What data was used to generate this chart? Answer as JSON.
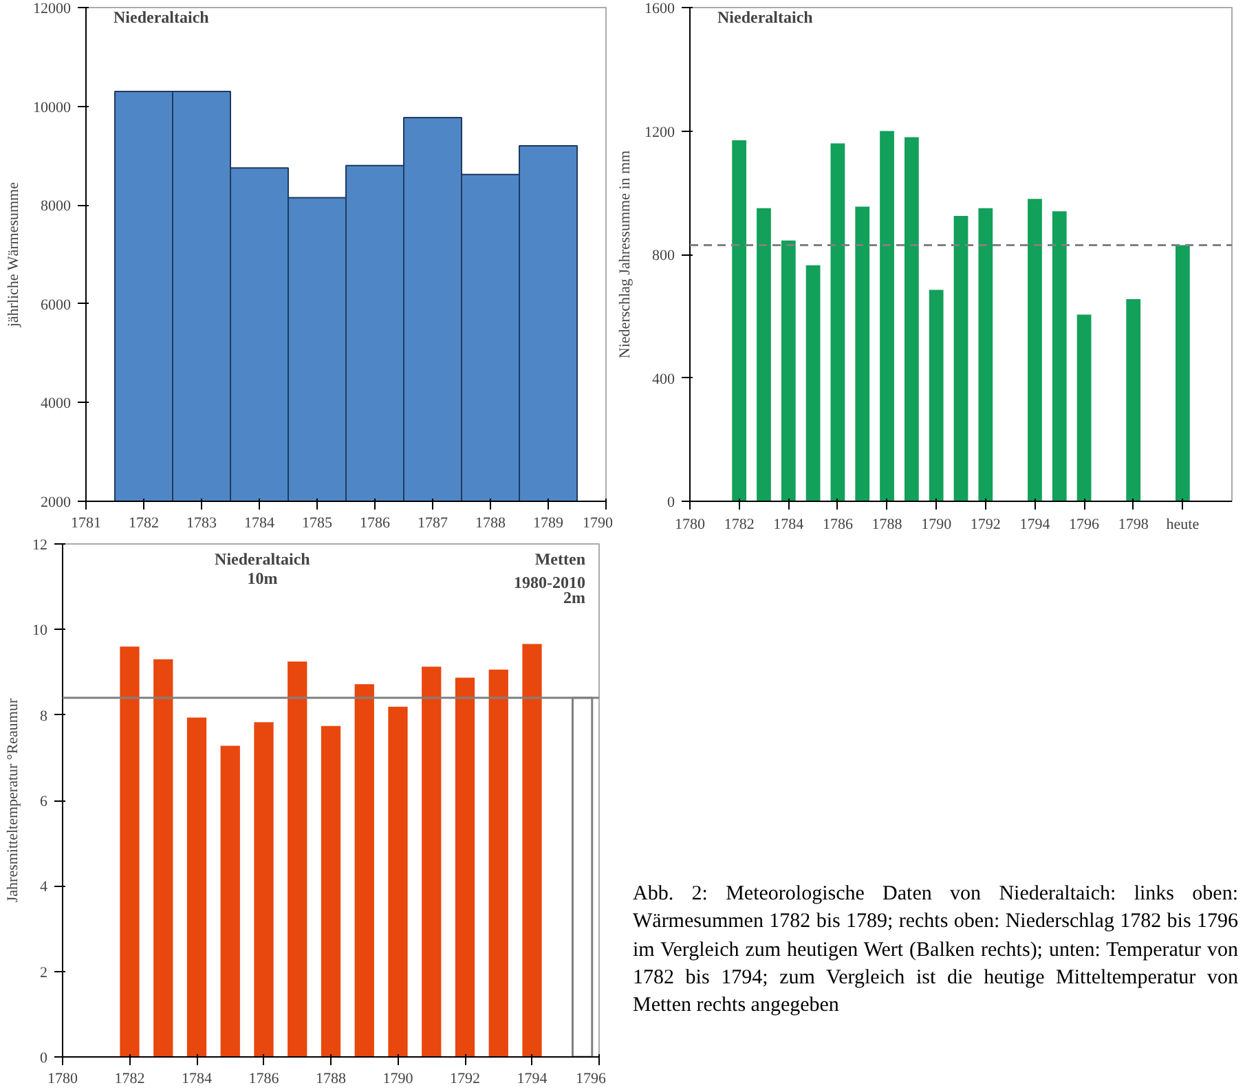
{
  "chart_data": [
    {
      "type": "histogram",
      "ylabel": "jährliche Wärmesumme",
      "annotations": [
        "Niederaltaich"
      ],
      "bins": [
        1781.5,
        1782.5,
        1783.5,
        1784.5,
        1785.5,
        1786.5,
        1787.5,
        1788.5,
        1789.5
      ],
      "values": [
        10300,
        10300,
        8750,
        8150,
        8800,
        9770,
        8620,
        9200
      ],
      "color": "#4f86c6",
      "xlim": [
        1781,
        1790
      ],
      "xticks": [
        1781,
        1782,
        1783,
        1784,
        1785,
        1786,
        1787,
        1788,
        1789,
        1790
      ],
      "ylim": [
        2000,
        12000
      ],
      "yticks": [
        2000,
        4000,
        6000,
        8000,
        10000,
        12000
      ]
    },
    {
      "type": "bar",
      "ylabel": "Niederschlag Jahressumme in mm",
      "annotations": [
        "Niederaltaich"
      ],
      "x": [
        1782,
        1783,
        1784,
        1785,
        1786,
        1787,
        1788,
        1789,
        1790,
        1791,
        1792,
        1794,
        1795,
        1796,
        1798,
        1800
      ],
      "values": [
        1170,
        950,
        845,
        765,
        1160,
        955,
        1200,
        1180,
        685,
        925,
        950,
        980,
        940,
        605,
        655,
        830
      ],
      "color": "#12a05a",
      "xlim": [
        1780,
        1802
      ],
      "xticks": [
        1780,
        1782,
        1784,
        1786,
        1788,
        1790,
        1792,
        1794,
        1796,
        1798,
        {
          "value": 1800,
          "label": "heute"
        }
      ],
      "ylim": [
        0,
        1600
      ],
      "yticks": [
        0,
        400,
        800,
        1200,
        1600
      ],
      "ref_lines": [
        {
          "axis": "y",
          "value": 830,
          "label": null,
          "color": "#808080",
          "line_style": "dashed"
        }
      ]
    },
    {
      "type": "bar",
      "ylabel": "Jahresmitteltemperatur °Reaumur",
      "annotations": [
        "Niederaltaich\n10m",
        "Metten\n1980-2010\n2m"
      ],
      "series": [
        {
          "x": [
            1782,
            1783,
            1784,
            1785,
            1786,
            1787,
            1788,
            1789,
            1790,
            1791,
            1792,
            1793,
            1794
          ],
          "values": [
            9.6,
            9.3,
            7.94,
            7.28,
            7.83,
            9.25,
            7.74,
            8.72,
            8.19,
            9.13,
            8.87,
            9.06,
            9.66
          ],
          "color": "#e8470e"
        },
        {
          "x": [
            1795.5
          ],
          "values": [
            8.4
          ],
          "color": "#ffffff"
        }
      ],
      "xlim": [
        1780,
        1796
      ],
      "xticks": [
        1780,
        1782,
        1784,
        1786,
        1788,
        1790,
        1792,
        1794,
        1796
      ],
      "ylim": [
        0,
        12
      ],
      "yticks": [
        0,
        2,
        4,
        6,
        8,
        10,
        12
      ],
      "ref_lines": [
        {
          "axis": "y",
          "value": 8.4,
          "label": null,
          "color": "#808080",
          "line_style": "solid"
        }
      ]
    },
    {
      "type": "other",
      "annotations": [
        "Abb. 2: Meteorologische Daten von Niederaltaich: links oben: Wärmesummen 1782 bis 1789; rechts oben: Niederschlag 1782 bis 1796 im Vergleich zum heutigen Wert (Balken rechts); unten: Temperatur von 1782 bis 1794; zum Vergleich ist die heutige Mitteltemperatur von Metten rechts angegeben"
      ]
    }
  ]
}
